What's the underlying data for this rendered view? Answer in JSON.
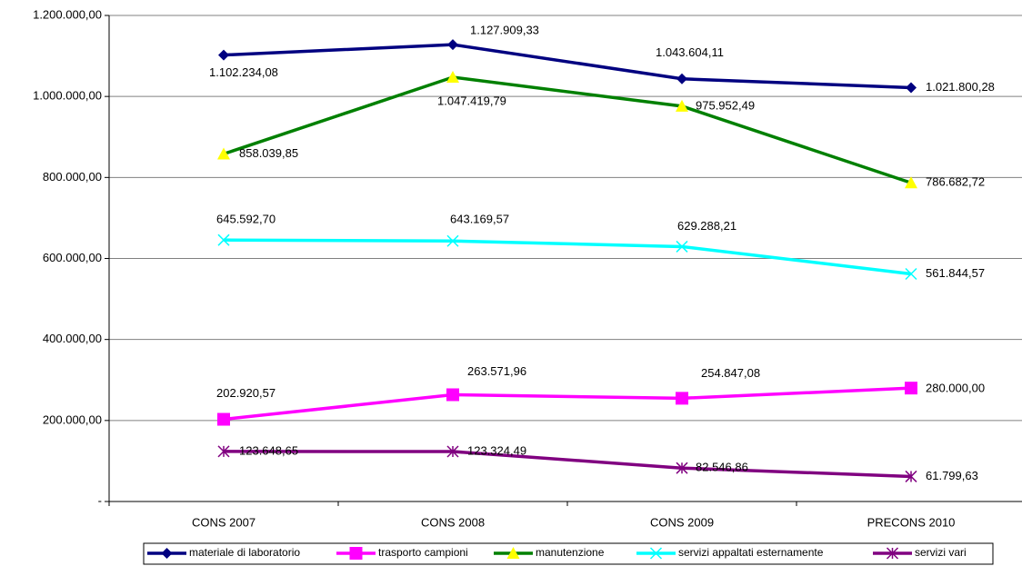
{
  "chart_data": {
    "type": "line",
    "categories": [
      "CONS 2007",
      "CONS 2008",
      "CONS 2009",
      "PRECONS 2010"
    ],
    "ylim": [
      0,
      1200000
    ],
    "yticks": [
      {
        "value": 0,
        "label": "-"
      },
      {
        "value": 200000,
        "label": "200.000,00"
      },
      {
        "value": 400000,
        "label": "400.000,00"
      },
      {
        "value": 600000,
        "label": "600.000,00"
      },
      {
        "value": 800000,
        "label": "800.000,00"
      },
      {
        "value": 1000000,
        "label": "1.000.000,00"
      },
      {
        "value": 1200000,
        "label": "1.200.000,00"
      }
    ],
    "grid": true,
    "legend": "bottom",
    "series": [
      {
        "name": "materiale di laboratorio",
        "color": "#000080",
        "marker": "diamond",
        "marker_color": "#000080",
        "values": [
          1102234.08,
          1127909.33,
          1043604.11,
          1021800.28
        ],
        "value_labels": [
          "1.102.234,08",
          "1.127.909,33",
          "1.043.604,11",
          "1.021.800,28"
        ]
      },
      {
        "name": "trasporto campioni",
        "color": "#ff00ff",
        "marker": "square",
        "marker_color": "#ff00ff",
        "values": [
          202920.57,
          263571.96,
          254847.08,
          280000.0
        ],
        "value_labels": [
          "202.920,57",
          "263.571,96",
          "254.847,08",
          "280.000,00"
        ]
      },
      {
        "name": "manutenzione",
        "color": "#008000",
        "marker": "triangle",
        "marker_color": "#ffff00",
        "values": [
          858039.85,
          1047419.79,
          975952.49,
          786682.72
        ],
        "value_labels": [
          "858.039,85",
          "1.047.419,79",
          "975.952,49",
          "786.682,72"
        ]
      },
      {
        "name": "servizi appaltati esternamente",
        "color": "#00ffff",
        "marker": "x",
        "marker_color": "#00ffff",
        "values": [
          645592.7,
          643169.57,
          629288.21,
          561844.57
        ],
        "value_labels": [
          "645.592,70",
          "643.169,57",
          "629.288,21",
          "561.844,57"
        ]
      },
      {
        "name": "servizi vari",
        "color": "#800080",
        "marker": "star",
        "marker_color": "#800080",
        "values": [
          123648.65,
          123324.49,
          82546.86,
          61799.63
        ],
        "value_labels": [
          "123.648,65",
          "123.324,49",
          "82.546,86",
          "61.799,63"
        ]
      }
    ]
  }
}
